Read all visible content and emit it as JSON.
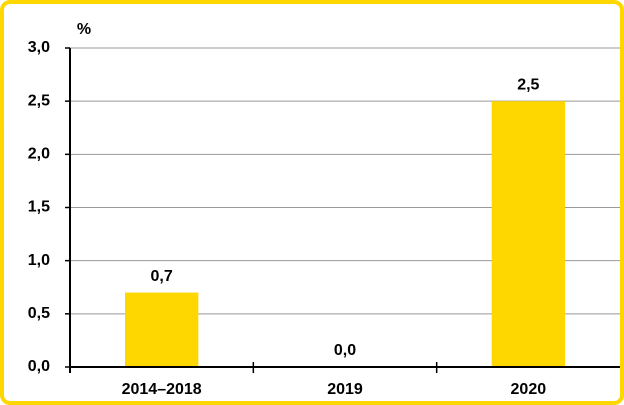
{
  "chart_data": {
    "type": "bar",
    "y_label": "%",
    "categories": [
      "2014–2018",
      "2019",
      "2020"
    ],
    "values": [
      0.7,
      0.0,
      2.5
    ],
    "value_labels": [
      "0,7",
      "0,0",
      "2,5"
    ],
    "color": "#ffd700",
    "ylim": [
      0,
      3
    ],
    "yticks": [
      {
        "value": 0,
        "label": "0,0"
      },
      {
        "value": 0.5,
        "label": "0,5"
      },
      {
        "value": 1,
        "label": "1,0"
      },
      {
        "value": 1.5,
        "label": "1,5"
      },
      {
        "value": 2,
        "label": "2,0"
      },
      {
        "value": 2.5,
        "label": "2,5"
      },
      {
        "value": 3,
        "label": "3,0"
      }
    ],
    "grid": true
  }
}
